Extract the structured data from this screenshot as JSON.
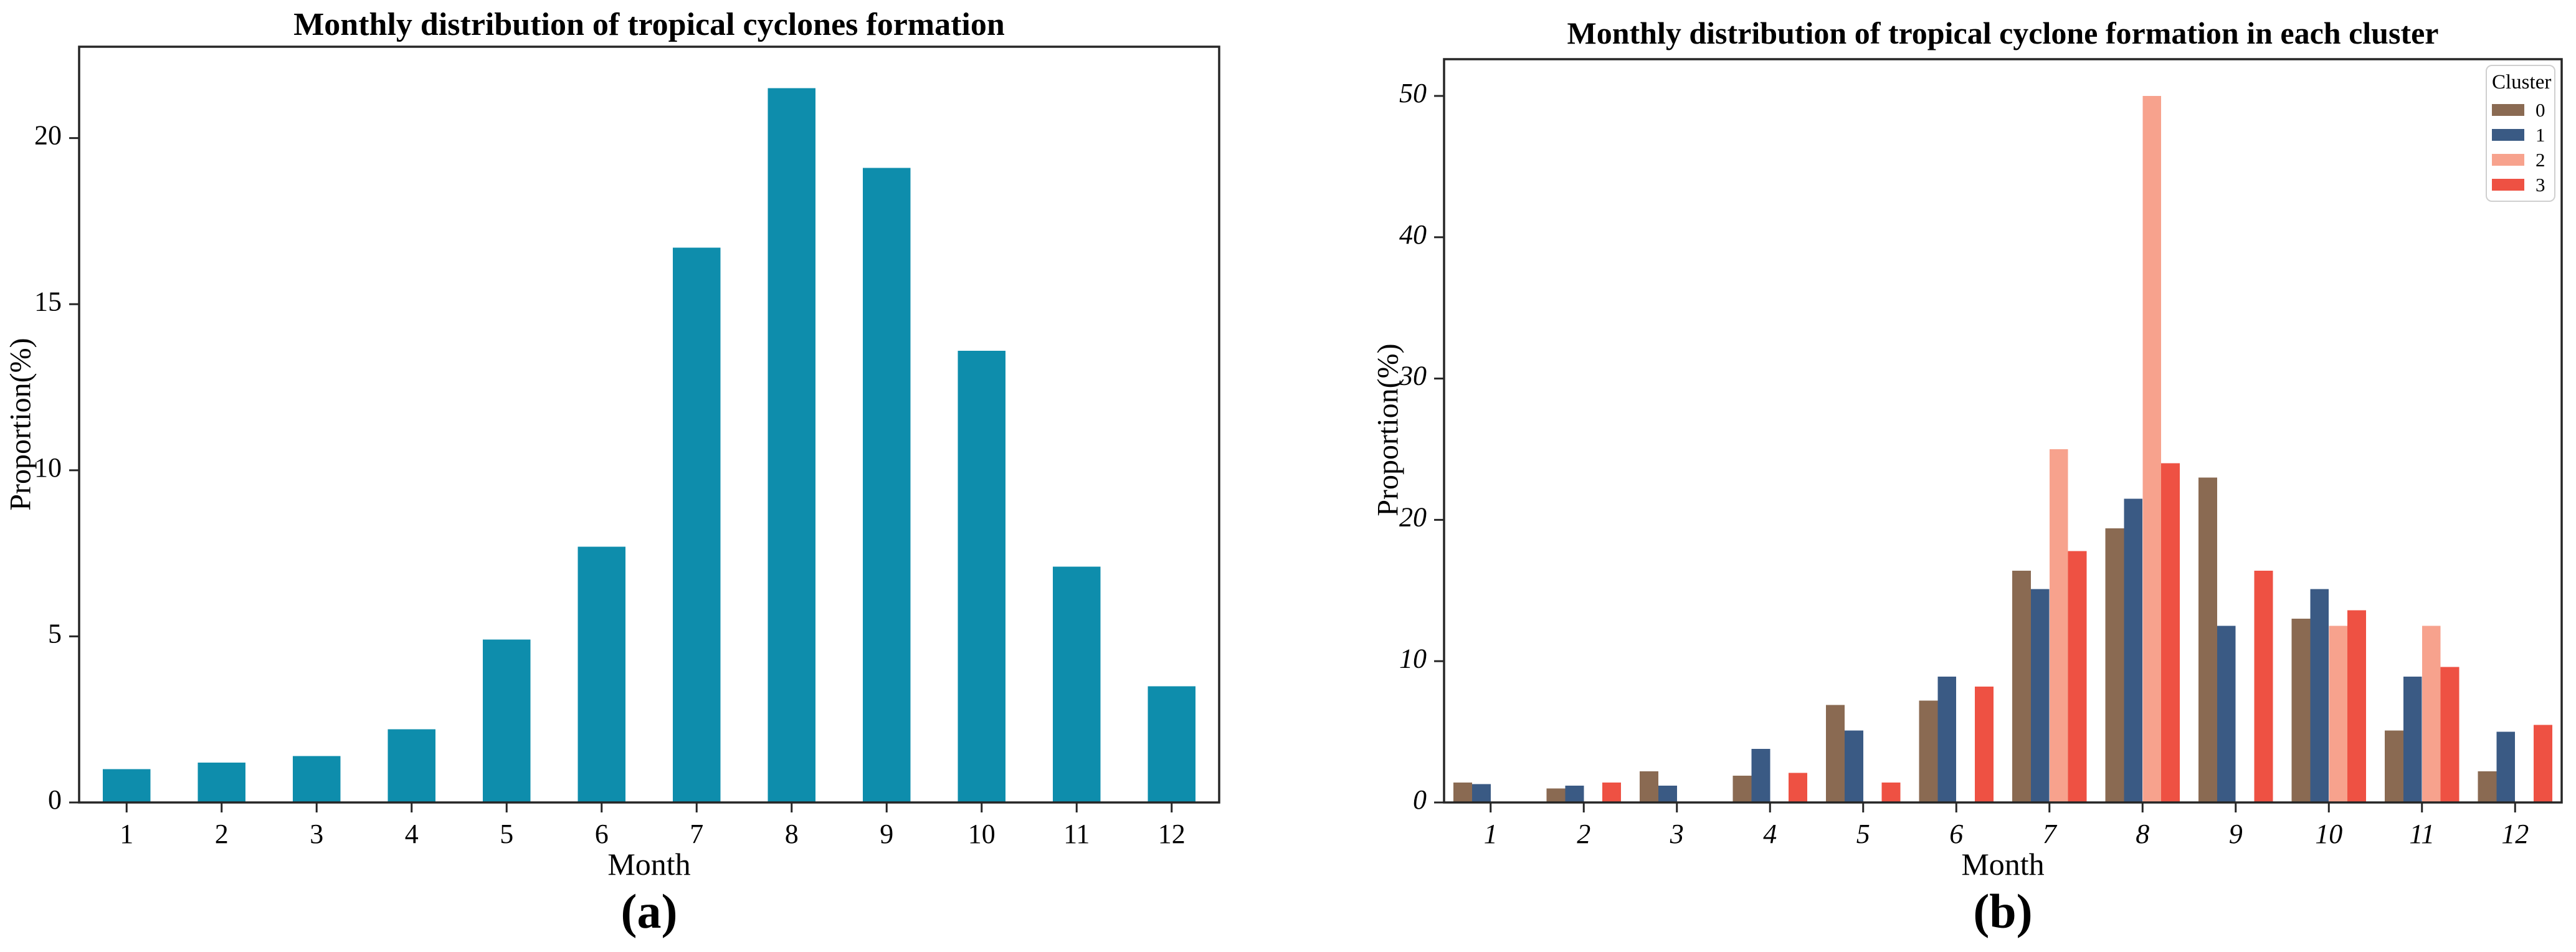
{
  "chart_data": [
    {
      "type": "bar",
      "panel": "a",
      "title": "Monthly distribution of tropical cyclones formation",
      "xlabel": "Month",
      "ylabel": "Proportion(%)",
      "caption": "(a)",
      "categories": [
        "1",
        "2",
        "3",
        "4",
        "5",
        "6",
        "7",
        "8",
        "9",
        "10",
        "11",
        "12"
      ],
      "values": [
        1.0,
        1.2,
        1.4,
        2.2,
        4.9,
        7.7,
        16.7,
        21.5,
        19.1,
        13.6,
        7.1,
        3.5
      ],
      "bar_color": "#0e8dac",
      "ylim": [
        0,
        22.75
      ],
      "yticks": [
        "0",
        "5",
        "10",
        "15",
        "20"
      ],
      "grid": "off",
      "tick_italic": false
    },
    {
      "type": "bar",
      "panel": "b",
      "grouped": true,
      "title": "Monthly distribution of tropical cyclone formation in each cluster",
      "xlabel": "Month",
      "ylabel": "Proportion(%)",
      "caption": "(b)",
      "categories": [
        "1",
        "2",
        "3",
        "4",
        "5",
        "6",
        "7",
        "8",
        "9",
        "10",
        "11",
        "12"
      ],
      "series": [
        {
          "name": "0",
          "color": "#8a6a52",
          "values": [
            1.4,
            1.0,
            2.2,
            1.9,
            6.9,
            7.2,
            16.4,
            19.4,
            23.0,
            13.0,
            5.1,
            2.2
          ]
        },
        {
          "name": "1",
          "color": "#3a5a84",
          "values": [
            1.3,
            1.2,
            1.2,
            3.8,
            5.1,
            8.9,
            15.1,
            21.5,
            12.5,
            15.1,
            8.9,
            5.0
          ]
        },
        {
          "name": "2",
          "color": "#f7a28d",
          "values": [
            0,
            0,
            0,
            0,
            0,
            0,
            25.0,
            50.0,
            0,
            12.5,
            12.5,
            0
          ]
        },
        {
          "name": "3",
          "color": "#ee5143",
          "values": [
            0,
            1.4,
            0,
            2.1,
            1.4,
            8.2,
            17.8,
            24.0,
            16.4,
            13.6,
            9.6,
            5.5
          ]
        }
      ],
      "legend": {
        "title": "Cluster",
        "position": "top-right",
        "entries": [
          "0",
          "1",
          "2",
          "3"
        ]
      },
      "ylim": [
        0,
        52.6
      ],
      "yticks": [
        "0",
        "10",
        "20",
        "30",
        "40",
        "50"
      ],
      "grid": "off",
      "tick_italic": true
    }
  ],
  "colors": {
    "axis": "#262626",
    "teal": "#0e8dac",
    "cluster0_brown": "#8a6a52",
    "cluster1_blue": "#3a5a84",
    "cluster2_salmon": "#f7a28d",
    "cluster3_red": "#ee5143"
  }
}
